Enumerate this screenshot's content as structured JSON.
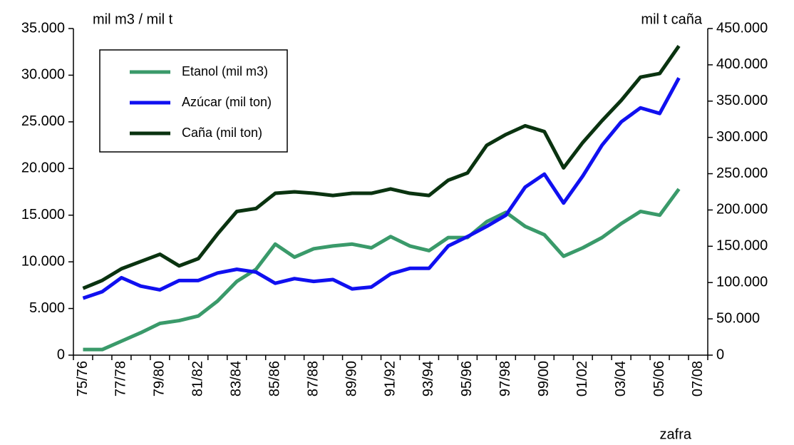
{
  "chart_data": {
    "type": "line",
    "ylabel": "mil m3 / mil t",
    "y2label": "mil t caña",
    "xlabel": "zafra",
    "categories": [
      "75/76",
      null,
      "77/78",
      null,
      "79/80",
      null,
      "81/82",
      null,
      "83/84",
      null,
      "85/86",
      null,
      "87/88",
      null,
      "89/90",
      null,
      "91/92",
      null,
      "93/94",
      null,
      "95/96",
      null,
      "97/98",
      null,
      "99/00",
      null,
      "01/02",
      null,
      "03/04",
      null,
      "05/06",
      null,
      "07/08"
    ],
    "series": [
      {
        "name": "Etanol (mil m3)",
        "color": "#3a9a6a",
        "values": [
          600,
          600,
          1500,
          2400,
          3400,
          3700,
          4200,
          5800,
          7900,
          9200,
          11900,
          10500,
          11400,
          11700,
          11900,
          11500,
          12700,
          11700,
          11200,
          12600,
          12600,
          14300,
          15300,
          13800,
          12900,
          10600,
          11500,
          12600,
          14100,
          15400,
          15000,
          17800,
          null
        ]
      },
      {
        "name": "Azúcar (mil ton)",
        "color": "#1010f0",
        "values": [
          6100,
          6800,
          8300,
          7400,
          7000,
          8000,
          8000,
          8800,
          9200,
          8900,
          7700,
          8200,
          7900,
          8100,
          7100,
          7300,
          8700,
          9300,
          9300,
          11700,
          12700,
          13800,
          15000,
          18000,
          19400,
          16300,
          19200,
          22500,
          25000,
          26500,
          25900,
          29700,
          null
        ]
      },
      {
        "name": "Caña (mil ton)",
        "color": "#0a3310",
        "axis": "y2",
        "values": [
          92000,
          103000,
          119000,
          129000,
          139000,
          123000,
          133000,
          167000,
          198000,
          202000,
          223000,
          225000,
          223000,
          220000,
          223000,
          223000,
          229000,
          223000,
          220000,
          241000,
          251000,
          289000,
          304000,
          316000,
          308000,
          258000,
          293000,
          323000,
          351000,
          383000,
          388000,
          426000,
          null
        ]
      }
    ],
    "ylim": [
      0,
      35000
    ],
    "yticks": [
      0,
      {
        "value": 5000,
        "label": "5.000"
      },
      {
        "value": 10000,
        "label": "10.000"
      },
      {
        "value": 15000,
        "label": "15.000"
      },
      {
        "value": 20000,
        "label": "20.000"
      },
      {
        "value": 25000,
        "label": "25.000"
      },
      {
        "value": 30000,
        "label": "30.000"
      },
      {
        "value": 35000,
        "label": "35.000"
      }
    ],
    "y2lim": [
      0,
      450000
    ],
    "y2ticks": [
      0,
      {
        "value": 50000,
        "label": "50.000"
      },
      {
        "value": 100000,
        "label": "100.000"
      },
      {
        "value": 150000,
        "label": "150.000"
      },
      {
        "value": 200000,
        "label": "200.000"
      },
      {
        "value": 250000,
        "label": "250.000"
      },
      {
        "value": 300000,
        "label": "300.000"
      },
      {
        "value": 350000,
        "label": "350.000"
      },
      {
        "value": 400000,
        "label": "400.000"
      },
      {
        "value": 450000,
        "label": "450.000"
      }
    ],
    "legend": "upper left",
    "grid": false
  }
}
